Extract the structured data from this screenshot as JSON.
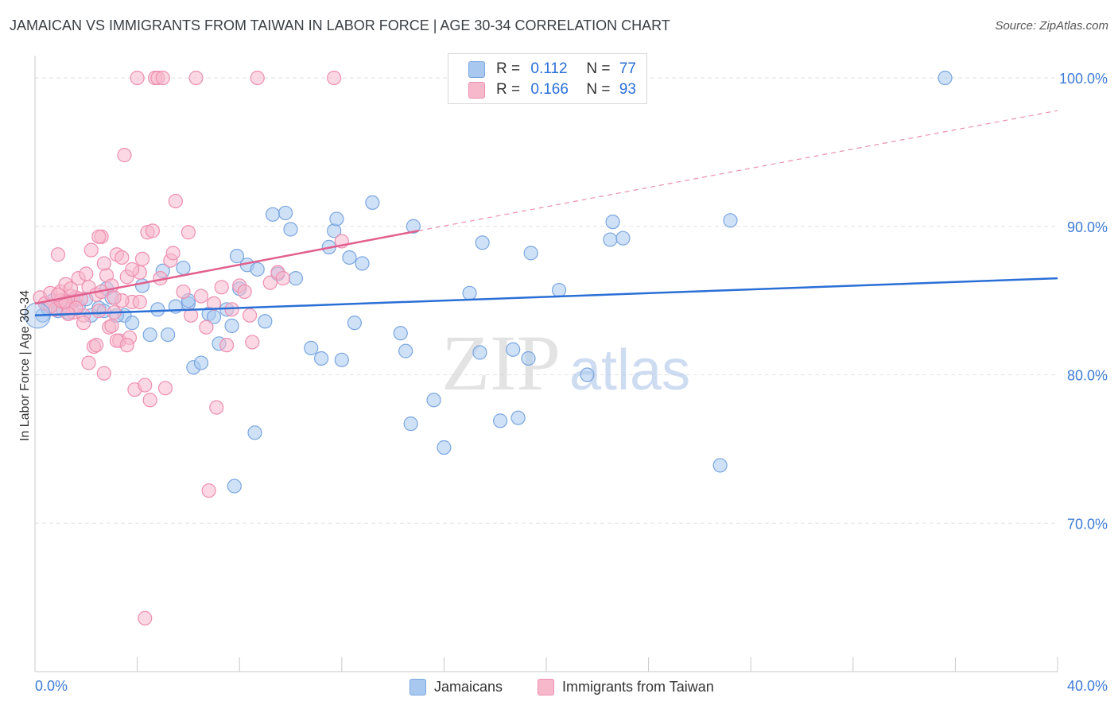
{
  "header": {
    "title": "JAMAICAN VS IMMIGRANTS FROM TAIWAN IN LABOR FORCE | AGE 30-34 CORRELATION CHART",
    "source": "Source: ZipAtlas.com"
  },
  "watermark": {
    "zip": "ZIP",
    "atlas": "atlas"
  },
  "stats_legend": [
    {
      "r_label": "R =",
      "r_value": "0.112",
      "n_label": "N =",
      "n_value": "77"
    },
    {
      "r_label": "R =",
      "r_value": "0.166",
      "n_label": "N =",
      "n_value": "93"
    }
  ],
  "colors": {
    "blue_fill": "#a8c8f0",
    "blue_stroke": "#7aa6e0",
    "blue_line": "#2a6fd6",
    "pink_fill": "#f7b8cc",
    "pink_stroke": "#ee8fb0",
    "pink_line": "#e2608e",
    "tick_label": "#3d7bd6",
    "grid": "#e2e2e2"
  },
  "chart_data": {
    "type": "scatter",
    "ylabel": "In Labor Force | Age 30-34",
    "xlim": [
      0,
      40
    ],
    "ylim": [
      60,
      101.5
    ],
    "x_tick_labels": [
      {
        "value": 0,
        "label": "0.0%"
      },
      {
        "value": 40,
        "label": "40.0%"
      }
    ],
    "y_tick_labels": [
      {
        "value": 70,
        "label": "70.0%"
      },
      {
        "value": 80,
        "label": "80.0%"
      },
      {
        "value": 90,
        "label": "90.0%"
      },
      {
        "value": 100,
        "label": "100.0%"
      }
    ],
    "grid": true,
    "legend_position": "bottom",
    "series": [
      {
        "name": "Jamaicans",
        "trend": {
          "x": [
            0,
            40
          ],
          "y": [
            84.0,
            86.5
          ],
          "dashed_to": null
        },
        "points": [
          [
            0.3,
            84.0
          ],
          [
            0.5,
            84.5
          ],
          [
            0.7,
            85.0
          ],
          [
            0.9,
            84.3
          ],
          [
            1.1,
            84.4
          ],
          [
            1.3,
            84.2
          ],
          [
            1.5,
            85.0
          ],
          [
            1.7,
            84.6
          ],
          [
            2.0,
            85.1
          ],
          [
            2.2,
            84.0
          ],
          [
            2.5,
            84.5
          ],
          [
            2.8,
            85.8
          ],
          [
            3.0,
            85.2
          ],
          [
            3.5,
            84.0
          ],
          [
            3.8,
            83.5
          ],
          [
            4.2,
            86.0
          ],
          [
            4.5,
            82.7
          ],
          [
            4.8,
            84.4
          ],
          [
            5.0,
            87.0
          ],
          [
            5.2,
            82.7
          ],
          [
            5.5,
            84.6
          ],
          [
            5.8,
            87.2
          ],
          [
            6.0,
            84.8
          ],
          [
            6.2,
            80.5
          ],
          [
            6.5,
            80.8
          ],
          [
            6.8,
            84.1
          ],
          [
            7.0,
            83.9
          ],
          [
            7.2,
            82.1
          ],
          [
            7.5,
            84.4
          ],
          [
            7.7,
            83.3
          ],
          [
            7.8,
            72.5
          ],
          [
            7.9,
            88.0
          ],
          [
            8.0,
            85.8
          ],
          [
            8.3,
            87.4
          ],
          [
            8.6,
            76.1
          ],
          [
            8.7,
            87.1
          ],
          [
            9.0,
            83.6
          ],
          [
            9.3,
            90.8
          ],
          [
            9.5,
            86.8
          ],
          [
            9.8,
            90.9
          ],
          [
            10.0,
            89.8
          ],
          [
            10.2,
            86.5
          ],
          [
            10.8,
            81.8
          ],
          [
            11.2,
            81.1
          ],
          [
            11.5,
            88.6
          ],
          [
            11.7,
            89.7
          ],
          [
            11.8,
            90.5
          ],
          [
            12.0,
            81.0
          ],
          [
            12.3,
            87.9
          ],
          [
            12.5,
            83.5
          ],
          [
            12.8,
            87.5
          ],
          [
            13.2,
            91.6
          ],
          [
            14.3,
            82.8
          ],
          [
            14.5,
            81.6
          ],
          [
            14.7,
            76.7
          ],
          [
            14.8,
            90.0
          ],
          [
            15.6,
            78.3
          ],
          [
            16.0,
            75.1
          ],
          [
            17.0,
            85.5
          ],
          [
            17.4,
            81.5
          ],
          [
            17.5,
            88.9
          ],
          [
            18.2,
            76.9
          ],
          [
            18.7,
            81.7
          ],
          [
            18.9,
            77.1
          ],
          [
            19.3,
            81.1
          ],
          [
            19.4,
            88.2
          ],
          [
            20.5,
            85.7
          ],
          [
            21.6,
            80.0
          ],
          [
            22.5,
            89.1
          ],
          [
            22.6,
            90.3
          ],
          [
            23.0,
            89.2
          ],
          [
            26.8,
            73.9
          ],
          [
            27.2,
            90.4
          ],
          [
            35.6,
            100.0
          ],
          [
            2.7,
            84.3
          ],
          [
            3.2,
            84.0
          ],
          [
            6.0,
            85.0
          ]
        ]
      },
      {
        "name": "Immigrants from Taiwan",
        "trend": {
          "x": [
            0,
            15
          ],
          "y": [
            84.8,
            89.7
          ],
          "dashed_to": [
            40,
            97.8
          ]
        },
        "points": [
          [
            0.2,
            85.2
          ],
          [
            0.4,
            84.8
          ],
          [
            0.6,
            85.5
          ],
          [
            0.8,
            84.4
          ],
          [
            0.9,
            88.1
          ],
          [
            1.0,
            85.6
          ],
          [
            1.1,
            84.9
          ],
          [
            1.2,
            86.1
          ],
          [
            1.3,
            84.6
          ],
          [
            1.4,
            85.3
          ],
          [
            1.5,
            84.2
          ],
          [
            1.6,
            85.2
          ],
          [
            1.7,
            86.5
          ],
          [
            1.8,
            85.1
          ],
          [
            1.9,
            84.0
          ],
          [
            2.0,
            86.8
          ],
          [
            2.1,
            85.9
          ],
          [
            2.2,
            88.4
          ],
          [
            2.3,
            81.9
          ],
          [
            2.4,
            85.4
          ],
          [
            2.5,
            84.3
          ],
          [
            2.6,
            89.3
          ],
          [
            2.7,
            80.1
          ],
          [
            2.8,
            86.7
          ],
          [
            2.9,
            83.2
          ],
          [
            3.0,
            86.0
          ],
          [
            3.1,
            84.2
          ],
          [
            3.2,
            88.1
          ],
          [
            3.3,
            82.3
          ],
          [
            3.4,
            87.9
          ],
          [
            3.5,
            94.8
          ],
          [
            3.6,
            86.6
          ],
          [
            3.7,
            82.5
          ],
          [
            3.8,
            84.9
          ],
          [
            3.9,
            79.0
          ],
          [
            4.0,
            100.0
          ],
          [
            4.1,
            86.9
          ],
          [
            4.2,
            87.8
          ],
          [
            4.3,
            79.3
          ],
          [
            4.4,
            89.6
          ],
          [
            4.5,
            78.3
          ],
          [
            4.6,
            89.7
          ],
          [
            4.7,
            100.0
          ],
          [
            4.8,
            100.0
          ],
          [
            5.0,
            100.0
          ],
          [
            5.1,
            79.1
          ],
          [
            5.3,
            87.7
          ],
          [
            5.5,
            91.7
          ],
          [
            5.8,
            85.6
          ],
          [
            6.0,
            89.6
          ],
          [
            6.3,
            100.0
          ],
          [
            6.5,
            85.3
          ],
          [
            6.7,
            83.2
          ],
          [
            6.8,
            72.2
          ],
          [
            7.0,
            84.8
          ],
          [
            7.1,
            77.8
          ],
          [
            7.3,
            85.9
          ],
          [
            7.5,
            82.0
          ],
          [
            7.7,
            84.4
          ],
          [
            8.0,
            86.0
          ],
          [
            8.2,
            85.6
          ],
          [
            8.5,
            82.2
          ],
          [
            8.7,
            100.0
          ],
          [
            9.5,
            86.9
          ],
          [
            9.7,
            86.5
          ],
          [
            11.7,
            100.0
          ],
          [
            12.0,
            89.0
          ],
          [
            0.6,
            84.6
          ],
          [
            1.0,
            85.0
          ],
          [
            1.2,
            84.9
          ],
          [
            1.4,
            85.8
          ],
          [
            1.6,
            84.5
          ],
          [
            2.1,
            80.8
          ],
          [
            2.4,
            82.0
          ],
          [
            2.7,
            87.5
          ],
          [
            3.0,
            83.3
          ],
          [
            3.2,
            82.3
          ],
          [
            3.4,
            85.0
          ],
          [
            3.6,
            82.0
          ],
          [
            3.8,
            87.1
          ],
          [
            4.1,
            84.9
          ],
          [
            4.3,
            63.6
          ],
          [
            2.5,
            89.3
          ],
          [
            1.9,
            83.5
          ],
          [
            3.1,
            85.2
          ],
          [
            4.9,
            86.5
          ],
          [
            6.1,
            84.0
          ],
          [
            8.4,
            84.0
          ],
          [
            9.2,
            86.2
          ],
          [
            5.4,
            88.2
          ],
          [
            2.6,
            85.6
          ],
          [
            0.9,
            85.4
          ],
          [
            1.3,
            84.1
          ]
        ]
      }
    ]
  }
}
